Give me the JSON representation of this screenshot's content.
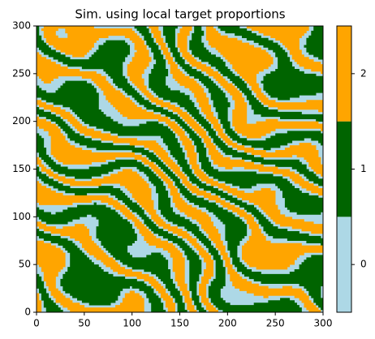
{
  "chart_data": {
    "type": "image",
    "title": "Sim. using local target proportions",
    "xlim": [
      0,
      300
    ],
    "ylim": [
      0,
      300
    ],
    "xticks": [
      0,
      50,
      100,
      150,
      200,
      250,
      300
    ],
    "yticks": [
      0,
      50,
      100,
      150,
      200,
      250,
      300
    ],
    "colorbar": {
      "lim": [
        -0.5,
        2.5
      ],
      "ticks": [
        0,
        1,
        2
      ],
      "colors": [
        "lightblue",
        "darkgreen",
        "orange"
      ]
    }
  }
}
